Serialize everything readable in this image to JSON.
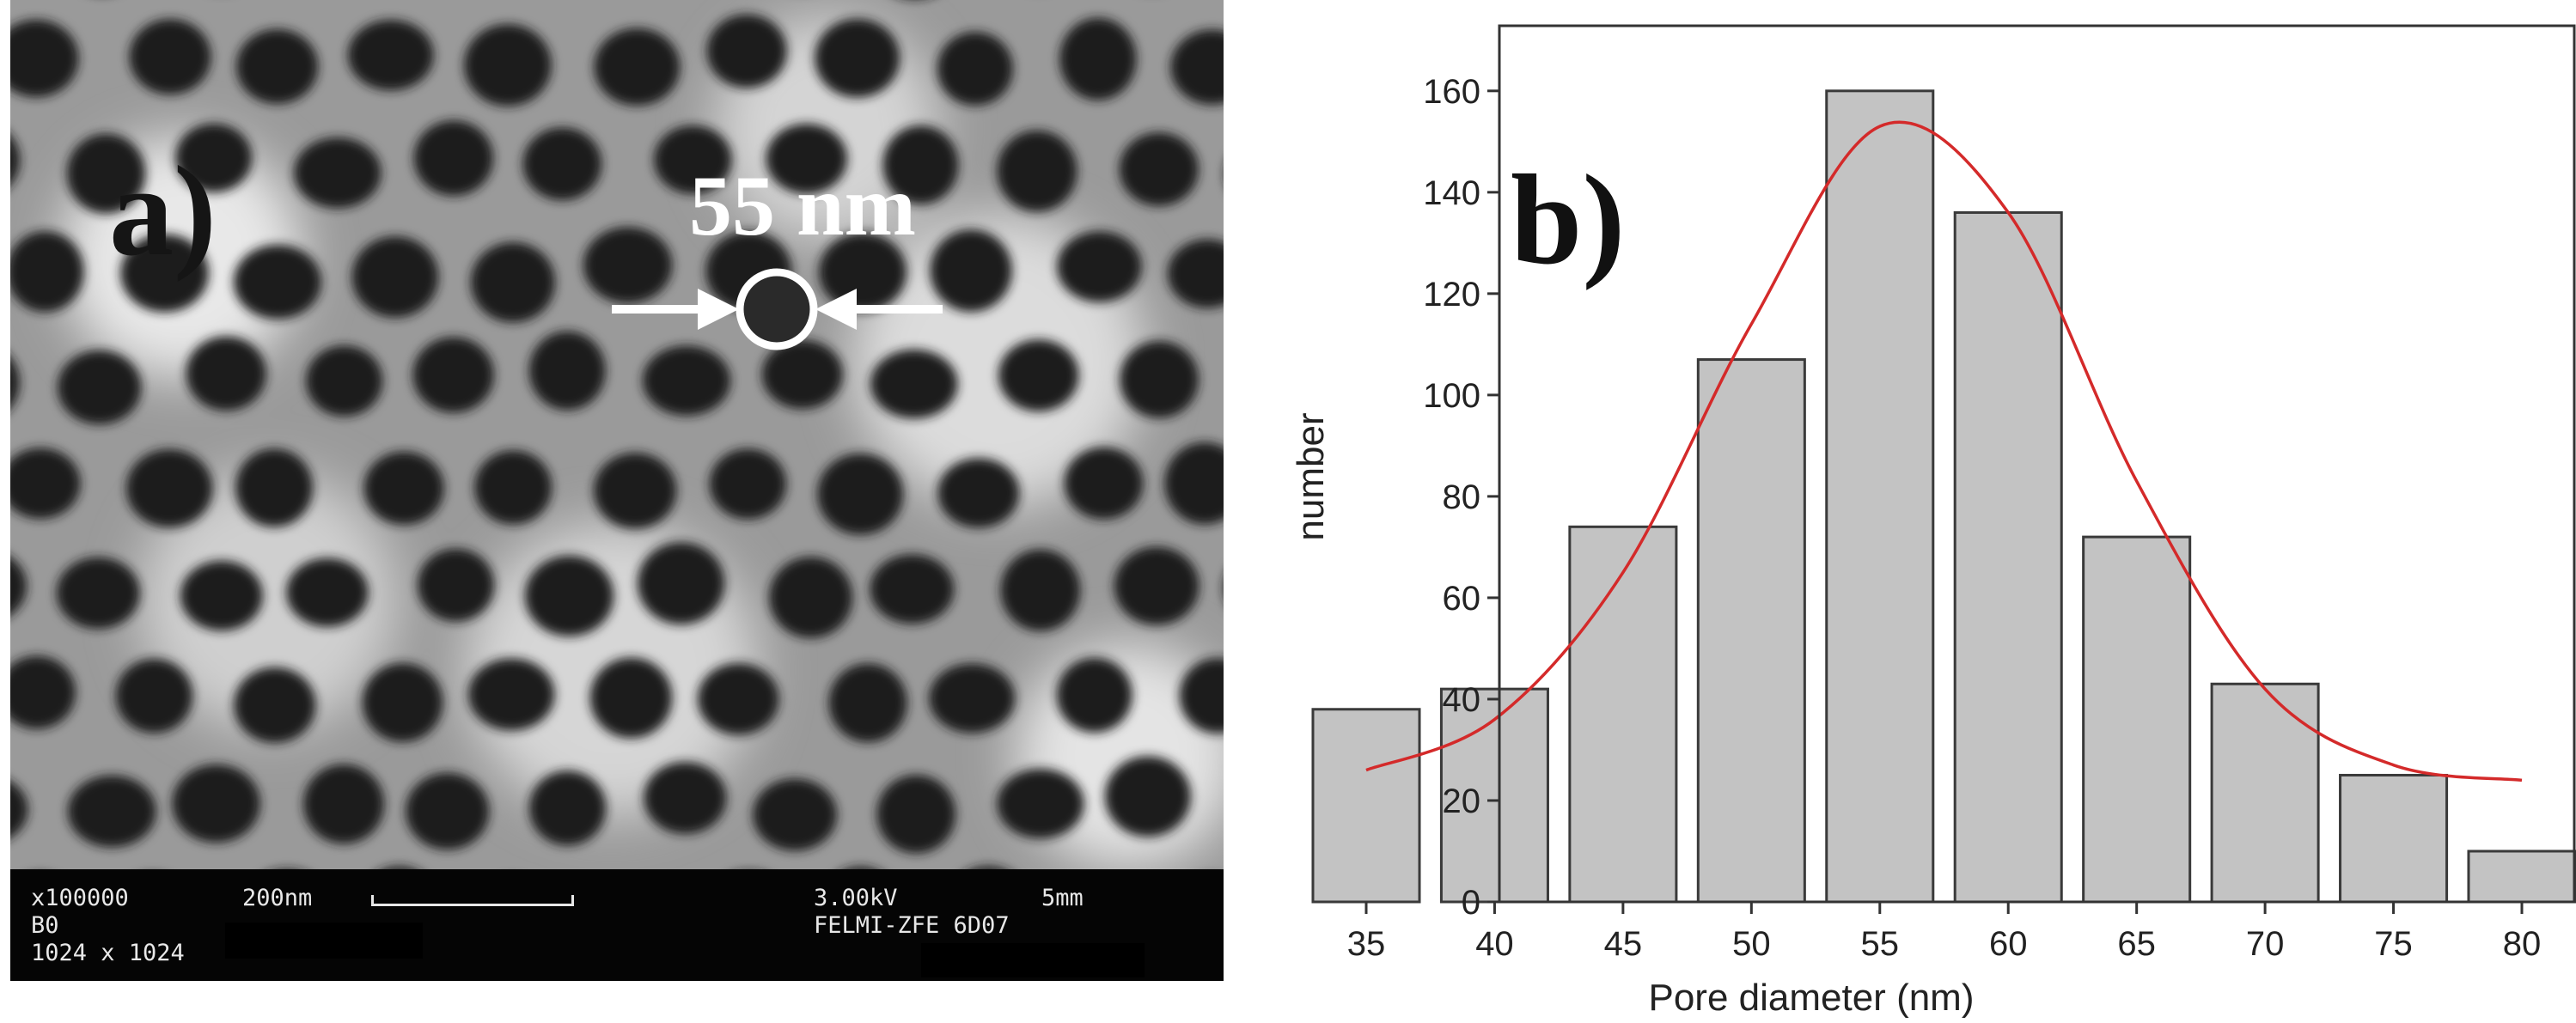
{
  "panel_a": {
    "label": "a)",
    "marker_text": "55 nm",
    "info": {
      "magnification": "x100000",
      "scale_text": "200nm",
      "voltage": "3.00kV",
      "wd": "5mm",
      "detector": "B0",
      "instrument": "FELMI-ZFE 6D07",
      "resolution": "1024 x 1024"
    }
  },
  "panel_b": {
    "label": "b)"
  },
  "chart_data": {
    "type": "bar",
    "categories": [
      "35",
      "40",
      "45",
      "50",
      "55",
      "60",
      "65",
      "70",
      "75",
      "80"
    ],
    "values": [
      38,
      42,
      74,
      107,
      160,
      136,
      72,
      43,
      25,
      10
    ],
    "fit": {
      "type": "gaussian",
      "points": [
        [
          35,
          26
        ],
        [
          40,
          36
        ],
        [
          45,
          65
        ],
        [
          50,
          114
        ],
        [
          55,
          153
        ],
        [
          60,
          136
        ],
        [
          65,
          83
        ],
        [
          70,
          42
        ],
        [
          75,
          27
        ],
        [
          80,
          24
        ]
      ]
    },
    "xlabel": "Pore diameter (nm)",
    "ylabel": "number",
    "ylim": [
      0,
      172
    ],
    "yticks": [
      0,
      20,
      40,
      60,
      80,
      100,
      120,
      140,
      160
    ],
    "grid": false,
    "colors": {
      "bar_fill": "#c3c3c3",
      "bar_edge": "#3a3a3a",
      "fit_line": "#d42a2a"
    }
  }
}
